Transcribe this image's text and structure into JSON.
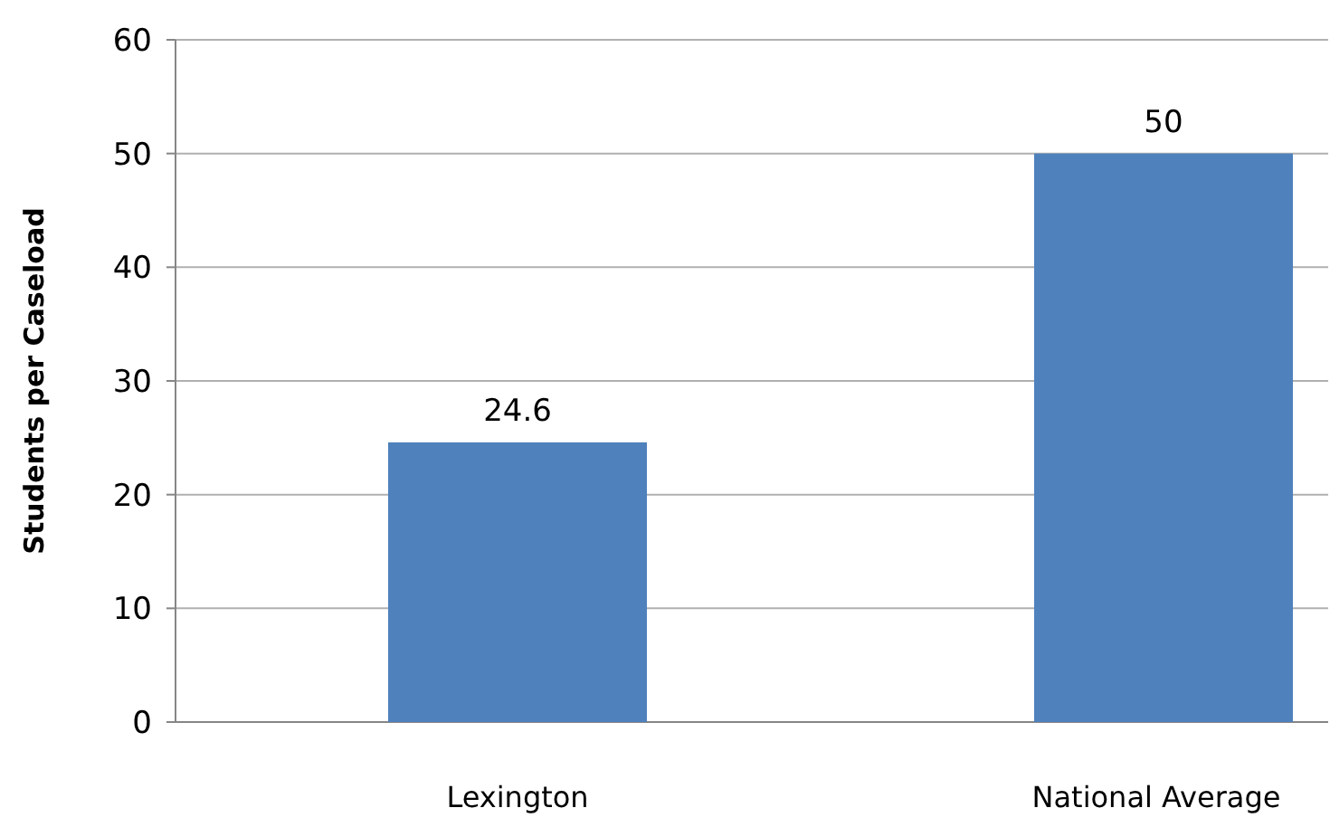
{
  "chart_data": {
    "type": "bar",
    "ylabel": "Students per Caseload",
    "categories": [
      "Lexington",
      "National Average"
    ],
    "values": [
      24.6,
      50
    ],
    "color": "#4f81bd",
    "ylim": [
      0,
      60
    ],
    "yticks": [
      0,
      10,
      20,
      30,
      40,
      50,
      60
    ],
    "grid": "y",
    "data_labels": true
  }
}
